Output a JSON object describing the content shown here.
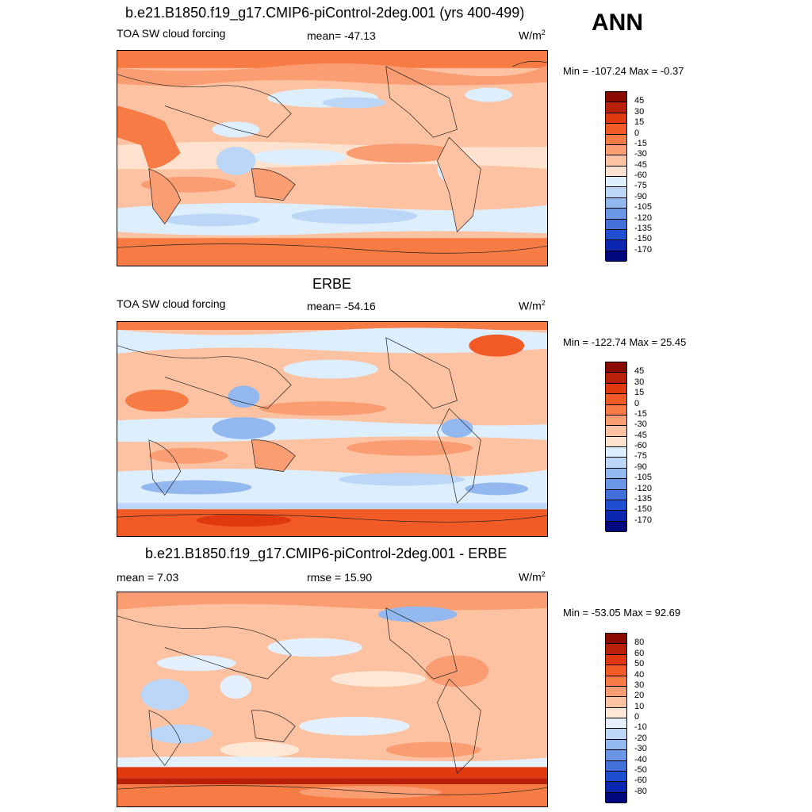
{
  "season": "ANN",
  "panel1": {
    "title": "b.e21.B1850.f19_g17.CMIP6-piControl-2deg.001 (yrs 400-499)",
    "variable": "TOA SW cloud forcing",
    "stat": "mean= -47.13",
    "units": "W/m",
    "units_sup": "2",
    "minmax": "Min = -107.24 Max =  -0.37"
  },
  "panel2": {
    "title": "ERBE",
    "variable": "TOA SW cloud forcing",
    "stat": "mean= -54.16",
    "units": "W/m",
    "units_sup": "2",
    "minmax": "Min = -122.74 Max =  25.45"
  },
  "panel3": {
    "title": "b.e21.B1850.f19_g17.CMIP6-piControl-2deg.001 - ERBE",
    "stat_left": "mean =   7.03",
    "stat_mid": "rmse =  15.90",
    "units": "W/m",
    "units_sup": "2",
    "minmax": "Min = -53.05 Max =  92.69"
  },
  "colorbar_abs": {
    "labels": [
      "45",
      "30",
      "15",
      "0",
      "-15",
      "-30",
      "-45",
      "-60",
      "-75",
      "-90",
      "-105",
      "-120",
      "-135",
      "-150",
      "-170"
    ],
    "colors": [
      "#8b0a00",
      "#b8200a",
      "#e0380f",
      "#f25a26",
      "#f77b45",
      "#fa9d72",
      "#fcc2a1",
      "#fde3cf",
      "#ddeeff",
      "#bcd6f8",
      "#93b8f0",
      "#6b95e6",
      "#4271dc",
      "#1f4ed0",
      "#0b27b0",
      "#000880"
    ]
  },
  "colorbar_diff": {
    "labels": [
      "80",
      "60",
      "50",
      "40",
      "30",
      "20",
      "10",
      "0",
      "-10",
      "-20",
      "-30",
      "-40",
      "-50",
      "-60",
      "-80"
    ],
    "colors": [
      "#8b0a00",
      "#b8200a",
      "#e0380f",
      "#f25a26",
      "#f77b45",
      "#fa9d72",
      "#fcc2a1",
      "#fde8d8",
      "#e4f0ff",
      "#bcd6f8",
      "#93b8f0",
      "#6b95e6",
      "#4271dc",
      "#1f4ed0",
      "#0b27b0",
      "#000880"
    ]
  }
}
